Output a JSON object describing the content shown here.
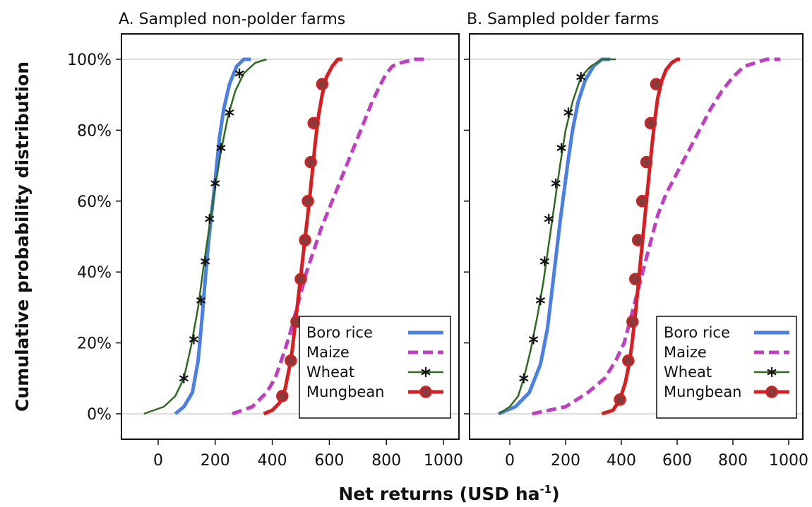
{
  "figure": {
    "ylabel": "Cumulative probability distribution",
    "xlabel_main": "Net returns (USD ha",
    "xlabel_sup": "-1",
    "xlabel_close": ")"
  },
  "chart_data": [
    {
      "type": "line",
      "title": "A. Sampled non-polder farms",
      "xlim": [
        -100,
        1000
      ],
      "ylim": [
        0,
        1
      ],
      "x_ticks": [
        0,
        200,
        400,
        600,
        800,
        1000
      ],
      "x_tick_labels": [
        "0",
        "200",
        "400",
        "600",
        "800",
        "1000"
      ],
      "y_ticks": [
        0,
        0.2,
        0.4,
        0.6,
        0.8,
        1.0
      ],
      "y_tick_labels": [
        "0%",
        "20%",
        "40%",
        "60%",
        "80%",
        "100%"
      ],
      "grid": "horizontal at 0% and 100%",
      "legend_position": "bottom-right",
      "series": [
        {
          "name": "Boro rice",
          "color": "#4a7fe6",
          "style": "solid-thick",
          "marker": "none",
          "x": [
            60,
            90,
            120,
            140,
            155,
            165,
            175,
            185,
            195,
            205,
            215,
            230,
            250,
            275,
            300,
            325
          ],
          "y": [
            0,
            0.02,
            0.06,
            0.15,
            0.28,
            0.38,
            0.47,
            0.55,
            0.62,
            0.7,
            0.78,
            0.86,
            0.93,
            0.98,
            1.0,
            1.0
          ]
        },
        {
          "name": "Maize",
          "color": "#c13dc1",
          "style": "dashed",
          "marker": "none",
          "x": [
            260,
            330,
            380,
            410,
            440,
            460,
            480,
            500,
            520,
            545,
            570,
            600,
            630,
            660,
            690,
            720,
            750,
            780,
            800,
            820,
            850,
            900,
            950
          ],
          "y": [
            0,
            0.02,
            0.06,
            0.1,
            0.17,
            0.22,
            0.28,
            0.34,
            0.4,
            0.46,
            0.52,
            0.58,
            0.64,
            0.7,
            0.76,
            0.82,
            0.88,
            0.93,
            0.96,
            0.98,
            0.99,
            1.0,
            1.0
          ]
        },
        {
          "name": "Wheat",
          "color": "#2e6b1e",
          "style": "solid-thin",
          "marker": "asterisk",
          "x": [
            -50,
            20,
            60,
            90,
            115,
            140,
            160,
            180,
            200,
            220,
            245,
            270,
            300,
            340,
            380
          ],
          "y": [
            0,
            0.02,
            0.05,
            0.1,
            0.19,
            0.3,
            0.42,
            0.53,
            0.64,
            0.74,
            0.84,
            0.91,
            0.96,
            0.99,
            1.0
          ],
          "markers_x": [
            90,
            125,
            150,
            165,
            180,
            200,
            220,
            250,
            285
          ],
          "markers_y": [
            0.1,
            0.21,
            0.32,
            0.43,
            0.55,
            0.65,
            0.75,
            0.85,
            0.96
          ]
        },
        {
          "name": "Mungbean",
          "color": "#d81e1e",
          "style": "solid-thick",
          "marker": "circle",
          "x": [
            370,
            400,
            425,
            445,
            460,
            470,
            480,
            490,
            500,
            510,
            520,
            530,
            540,
            550,
            560,
            575,
            590,
            610,
            630,
            645
          ],
          "y": [
            0,
            0.01,
            0.03,
            0.07,
            0.13,
            0.18,
            0.25,
            0.32,
            0.39,
            0.46,
            0.53,
            0.6,
            0.68,
            0.76,
            0.83,
            0.9,
            0.95,
            0.98,
            1.0,
            1.0
          ],
          "markers_x": [
            435,
            465,
            485,
            500,
            515,
            525,
            535,
            545,
            575
          ],
          "markers_y": [
            0.05,
            0.15,
            0.26,
            0.38,
            0.49,
            0.6,
            0.71,
            0.82,
            0.93
          ]
        }
      ]
    },
    {
      "type": "line",
      "title": "B. Sampled polder farms",
      "xlim": [
        -100,
        1000
      ],
      "ylim": [
        0,
        1
      ],
      "x_ticks": [
        0,
        200,
        400,
        600,
        800,
        1000
      ],
      "x_tick_labels": [
        "0",
        "200",
        "400",
        "600",
        "800",
        "1000"
      ],
      "y_ticks": [
        0,
        0.2,
        0.4,
        0.6,
        0.8,
        1.0
      ],
      "grid": "horizontal at 0% and 100%",
      "legend_position": "bottom-right",
      "series": [
        {
          "name": "Boro rice",
          "color": "#4a7fe6",
          "style": "solid-thick",
          "marker": "none",
          "x": [
            -40,
            20,
            70,
            110,
            135,
            150,
            165,
            180,
            195,
            210,
            225,
            245,
            270,
            300,
            330,
            360
          ],
          "y": [
            0,
            0.02,
            0.06,
            0.14,
            0.24,
            0.34,
            0.44,
            0.54,
            0.63,
            0.72,
            0.8,
            0.88,
            0.94,
            0.98,
            1.0,
            1.0
          ]
        },
        {
          "name": "Maize",
          "color": "#c13dc1",
          "style": "dashed",
          "marker": "none",
          "x": [
            80,
            200,
            280,
            340,
            380,
            410,
            430,
            450,
            470,
            490,
            510,
            530,
            560,
            600,
            640,
            680,
            720,
            760,
            800,
            840,
            880,
            920,
            970
          ],
          "y": [
            0,
            0.02,
            0.06,
            0.1,
            0.15,
            0.2,
            0.26,
            0.32,
            0.38,
            0.44,
            0.5,
            0.56,
            0.62,
            0.68,
            0.74,
            0.8,
            0.86,
            0.91,
            0.95,
            0.98,
            0.99,
            1.0,
            1.0
          ]
        },
        {
          "name": "Wheat",
          "color": "#2e6b1e",
          "style": "solid-thin",
          "marker": "asterisk",
          "x": [
            -40,
            0,
            30,
            50,
            75,
            100,
            120,
            140,
            160,
            180,
            200,
            225,
            255,
            290,
            330,
            380
          ],
          "y": [
            0,
            0.02,
            0.05,
            0.1,
            0.18,
            0.28,
            0.37,
            0.48,
            0.59,
            0.7,
            0.8,
            0.88,
            0.95,
            0.98,
            1.0,
            1.0
          ],
          "markers_x": [
            50,
            85,
            110,
            125,
            140,
            165,
            185,
            210,
            255
          ],
          "markers_y": [
            0.1,
            0.21,
            0.32,
            0.43,
            0.55,
            0.65,
            0.75,
            0.85,
            0.95
          ]
        },
        {
          "name": "Mungbean",
          "color": "#d81e1e",
          "style": "solid-thick",
          "marker": "circle",
          "x": [
            330,
            370,
            395,
            415,
            430,
            440,
            450,
            460,
            470,
            480,
            490,
            500,
            510,
            520,
            530,
            545,
            560,
            580,
            600,
            610
          ],
          "y": [
            0,
            0.01,
            0.04,
            0.09,
            0.15,
            0.21,
            0.28,
            0.36,
            0.44,
            0.52,
            0.6,
            0.68,
            0.76,
            0.83,
            0.89,
            0.94,
            0.97,
            0.99,
            1.0,
            1.0
          ],
          "markers_x": [
            395,
            425,
            440,
            450,
            460,
            475,
            490,
            505,
            525
          ],
          "markers_y": [
            0.04,
            0.15,
            0.26,
            0.38,
            0.49,
            0.6,
            0.71,
            0.82,
            0.93
          ]
        }
      ]
    }
  ]
}
